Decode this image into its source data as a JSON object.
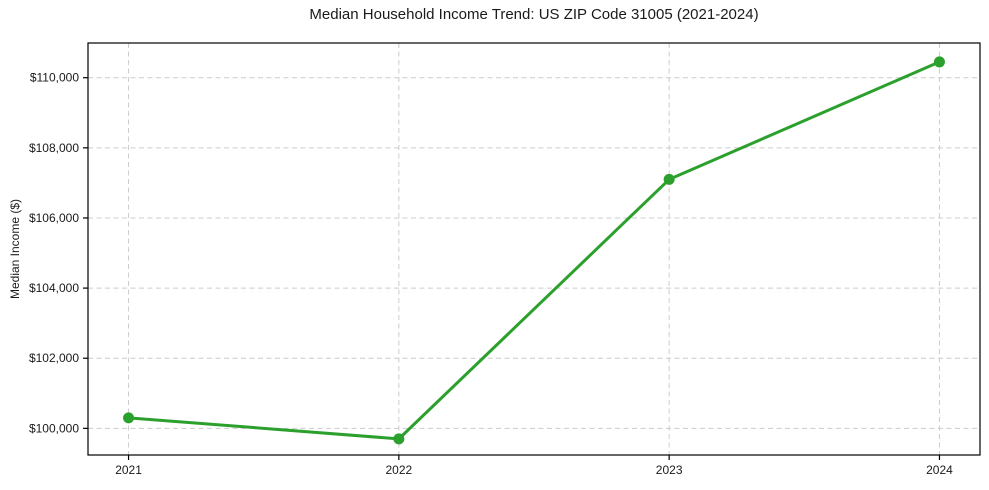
{
  "chart_data": {
    "type": "line",
    "title": "Median Household Income Trend: US ZIP Code 31005 (2021-2024)",
    "xlabel": "",
    "ylabel": "Median Income ($)",
    "x": [
      2021,
      2022,
      2023,
      2024
    ],
    "values": [
      100300,
      99700,
      107100,
      110450
    ],
    "xticks": [
      {
        "v": 2021,
        "label": "2021"
      },
      {
        "v": 2022,
        "label": "2022"
      },
      {
        "v": 2023,
        "label": "2023"
      },
      {
        "v": 2024,
        "label": "2024"
      }
    ],
    "yticks": [
      {
        "v": 100000,
        "label": "$100,000"
      },
      {
        "v": 102000,
        "label": "$102,000"
      },
      {
        "v": 104000,
        "label": "$104,000"
      },
      {
        "v": 106000,
        "label": "$106,000"
      },
      {
        "v": 108000,
        "label": "$108,000"
      },
      {
        "v": 110000,
        "label": "$110,000"
      }
    ],
    "xlim": [
      2020.85,
      2024.15
    ],
    "ylim": [
      99240,
      110990
    ],
    "grid": true,
    "legend": null,
    "colors": {
      "line": "#2ca02c",
      "marker": "#2ca02c",
      "grid": "#cccccc",
      "axis": "#000000",
      "text": "#1a1a1a",
      "background": "#ffffff"
    }
  }
}
